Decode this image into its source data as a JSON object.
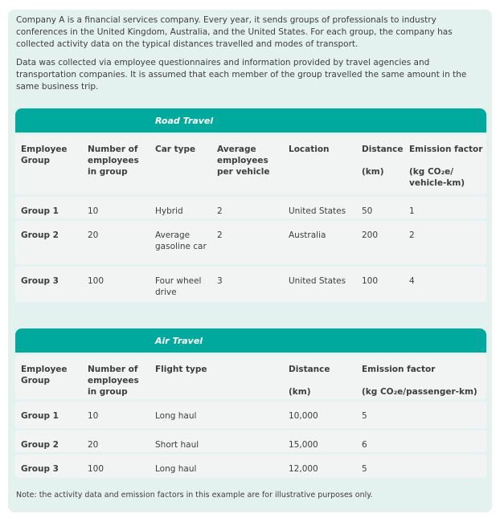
{
  "intro": [
    "Company A is a financial services company. Every year, it sends groups of professionals to industry conferences in the United Kingdom, Australia, and the United States. For each group, the company has collected activity data on the typical distances travelled and modes of transport.",
    "Data was collected via employee questionnaires and information provided by travel agencies and transportation companies. It is assumed that each member of the group travelled the same amount in the same business trip."
  ],
  "road": {
    "title": "Road Travel",
    "headers": [
      "Employee Group",
      "Number of employees in group",
      "Car type",
      "Average employees per vehicle",
      "Location",
      "Distance\n\n(km)",
      "Emission factor\n\n(kg CO₂e/ vehicle-km)"
    ],
    "rows": [
      [
        "Group 1",
        "10",
        "Hybrid",
        "2",
        "United States",
        "50",
        "1"
      ],
      [
        "Group 2",
        "20",
        "Average gasoline car",
        "2",
        "Australia",
        "200",
        "2"
      ],
      [
        "Group 3",
        "100",
        "Four wheel drive",
        "3",
        "United States",
        "100",
        "4"
      ]
    ]
  },
  "air": {
    "title": "Air Travel",
    "headers": [
      "Employee Group",
      "Number of employees in group",
      "Flight type",
      "Distance\n\n(km)",
      "Emission factor\n\n(kg CO₂e/passenger-km)"
    ],
    "rows": [
      [
        "Group 1",
        "10",
        "Long haul",
        "10,000",
        "5"
      ],
      [
        "Group 2",
        "20",
        "Short haul",
        "15,000",
        "6"
      ],
      [
        "Group 3",
        "100",
        "Long haul",
        "12,000",
        "5"
      ]
    ]
  },
  "note": "Note: the activity data and emission factors in this example are for illustrative purposes only.",
  "colors": {
    "accent": "#00a99d",
    "background": "#e4f2ef",
    "row": "#f2f4f4"
  }
}
